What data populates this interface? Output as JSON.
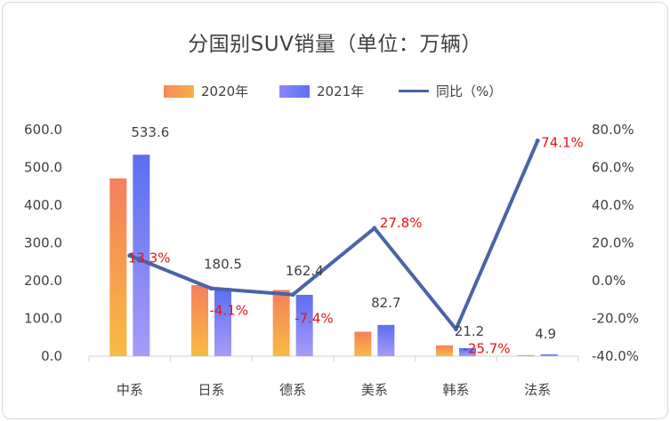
{
  "chart_data": {
    "type": "bar",
    "title": "分国别SUV销量（单位：万辆）",
    "categories": [
      "中系",
      "日系",
      "德系",
      "美系",
      "韩系",
      "法系"
    ],
    "series": [
      {
        "name": "2020年",
        "values": [
          471.0,
          188.2,
          175.4,
          64.7,
          28.5,
          2.8
        ],
        "axis": "left",
        "kind": "bar",
        "color": "#f7a24a"
      },
      {
        "name": "2021年",
        "values": [
          533.6,
          180.5,
          162.4,
          82.7,
          21.2,
          4.9
        ],
        "axis": "left",
        "kind": "bar",
        "color": "#6b7bf3"
      },
      {
        "name": "同比（%）",
        "values": [
          13.3,
          -4.1,
          -7.4,
          27.8,
          -25.7,
          74.1
        ],
        "axis": "right",
        "kind": "line",
        "color": "#4a64a6"
      }
    ],
    "value_labels": [
      "533.6",
      "180.5",
      "162.4",
      "82.7",
      "21.2",
      "4.9"
    ],
    "pct_labels": [
      "13.3%",
      "-4.1%",
      "-7.4%",
      "27.8%",
      "-25.7%",
      "74.1%"
    ],
    "ylim": [
      0,
      600
    ],
    "yticks": [
      "0.0",
      "100.0",
      "200.0",
      "300.0",
      "400.0",
      "500.0",
      "600.0"
    ],
    "y2lim": [
      -40,
      80
    ],
    "y2ticks": [
      "-40.0%",
      "-20.0%",
      "0.0%",
      "20.0%",
      "40.0%",
      "60.0%",
      "80.0%"
    ],
    "legend_position": "top",
    "grid": false
  }
}
